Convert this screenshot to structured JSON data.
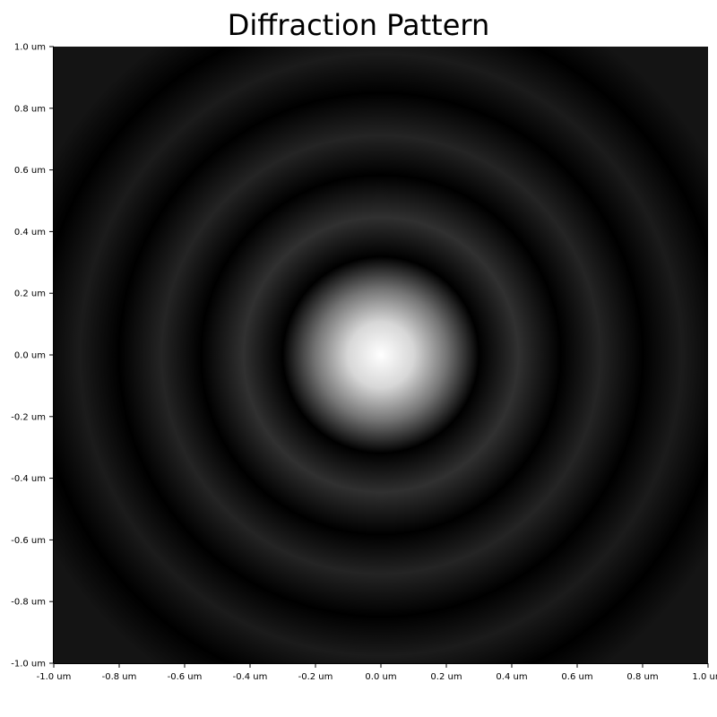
{
  "chart_data": {
    "type": "heatmap",
    "title": "Diffraction Pattern",
    "xlabel": "",
    "ylabel": "",
    "colormap": "gray",
    "xlim": [
      -1.0,
      1.0
    ],
    "ylim": [
      -1.0,
      1.0
    ],
    "x_ticks": [
      -1.0,
      -0.8,
      -0.6,
      -0.4,
      -0.2,
      0.0,
      0.2,
      0.4,
      0.6,
      0.8,
      1.0
    ],
    "x_tick_labels": [
      "-1.0 um",
      "-0.8 um",
      "-0.6 um",
      "-0.4 um",
      "-0.2 um",
      "0.0 um",
      "0.2 um",
      "0.4 um",
      "0.6 um",
      "0.8 um",
      "1.0 um"
    ],
    "y_ticks": [
      1.0,
      0.8,
      0.6,
      0.4,
      0.2,
      0.0,
      -0.2,
      -0.4,
      -0.6,
      -0.8,
      -1.0
    ],
    "y_tick_labels": [
      "1.0 um",
      "0.8 um",
      "0.6 um",
      "0.4 um",
      "0.2 um",
      "0.0 um",
      "-0.2 um",
      "-0.4 um",
      "-0.6 um",
      "-0.8 um",
      "-1.0 um"
    ],
    "grid": false,
    "center": [
      0.0,
      0.0
    ],
    "intensity_profile": {
      "radius_um": [
        0.0,
        0.1,
        0.2,
        0.3,
        0.42,
        0.55,
        0.67,
        0.8,
        0.92,
        1.05,
        1.17
      ],
      "intensity": [
        1.0,
        0.82,
        0.4,
        0.0,
        0.14,
        0.0,
        0.1,
        0.0,
        0.07,
        0.0,
        0.05
      ]
    },
    "colors": {
      "background": "#0b0b0b",
      "peak": "#ffffff",
      "minimum": "#000000"
    }
  }
}
